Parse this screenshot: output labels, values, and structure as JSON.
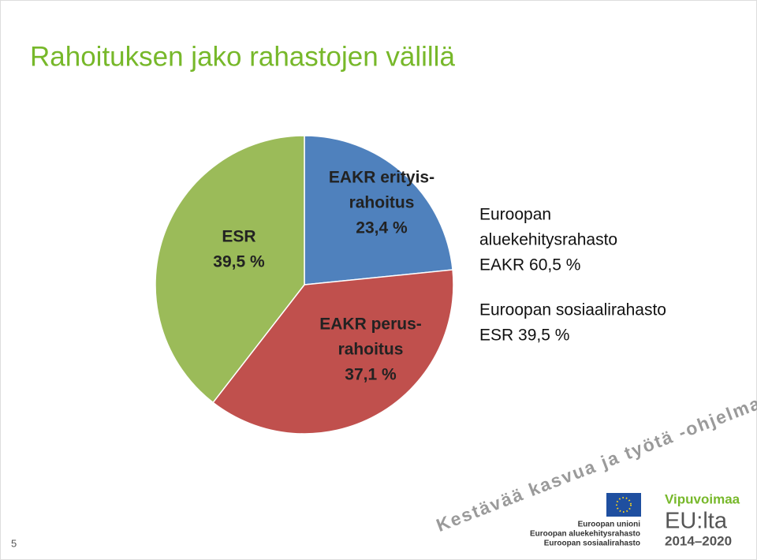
{
  "chart_data": {
    "type": "pie",
    "title": "Rahoituksen jako rahastojen välillä",
    "categories": [
      [
        "EAKR erityis-",
        "rahoitus"
      ],
      [
        "EAKR perus-",
        "rahoitus"
      ],
      [
        "ESR"
      ]
    ],
    "values": [
      23.4,
      37.1,
      39.5
    ],
    "value_labels": [
      "23,4 %",
      "37,1 %",
      "39,5 %"
    ],
    "colors": [
      "#4f81bd",
      "#c0504d",
      "#9bbb59"
    ],
    "annotations": [
      [
        "Euroopan",
        "aluekehitysrahasto",
        "EAKR 60,5 %"
      ],
      [
        "Euroopan sosiaalirahasto",
        "ESR 39,5 %"
      ]
    ]
  },
  "footer": {
    "slogan": "Kestävää kasvua ja työtä -ohjelma",
    "eu_lines": [
      "Euroopan unioni",
      "Euroopan aluekehitysrahasto",
      "Euroopan sosiaalirahasto"
    ],
    "brand": "Vipuvoimaa",
    "brand_big": "EU:lta",
    "years": "2014–2020",
    "page_number": "5"
  }
}
